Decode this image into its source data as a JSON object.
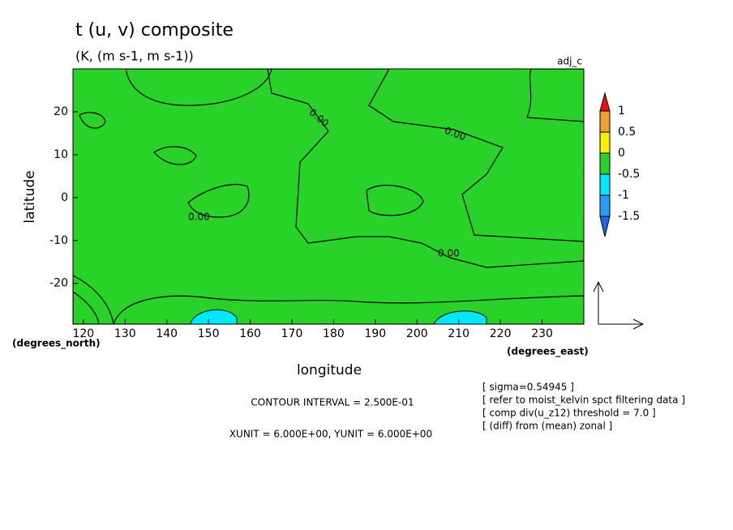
{
  "chart_data": {
    "type": "contour",
    "title": "t (u, v) composite",
    "subtitle": "(K, (m s-1, m s-1))",
    "annotation": "adj_c",
    "x_label": "longitude",
    "y_label": "latitude",
    "x_unit_label": "(degrees_east)",
    "y_unit_label": "(degrees_north)",
    "xlim": [
      117.5,
      240
    ],
    "ylim": [
      -29.5,
      30
    ],
    "xticks": [
      120,
      130,
      140,
      150,
      160,
      170,
      180,
      190,
      200,
      210,
      220,
      230
    ],
    "yticks": [
      -20,
      -10,
      0,
      10,
      20
    ],
    "colorbar": {
      "levels": [
        -1.5,
        -1,
        -0.5,
        0,
        0.5,
        1
      ],
      "colors": [
        "#1e64f0",
        "#2a9cf5",
        "#00e8ff",
        "#28d228",
        "#f8f000",
        "#f0a030",
        "#f01010"
      ]
    },
    "contour_labels": [
      "0.00",
      "0.00",
      "0.00",
      "0.00"
    ],
    "notes": [
      "CONTOUR INTERVAL = 2.500E-01",
      "XUNIT = 6.000E+00, YUNIT = 6.000E+00"
    ],
    "info": [
      "[ sigma=0.54945 ]",
      "[ refer to moist_kelvin spct filtering data ]",
      "[ comp div(u_z12) threshold = 7.0 ]",
      "[ (diff) from (mean) zonal ]"
    ]
  }
}
